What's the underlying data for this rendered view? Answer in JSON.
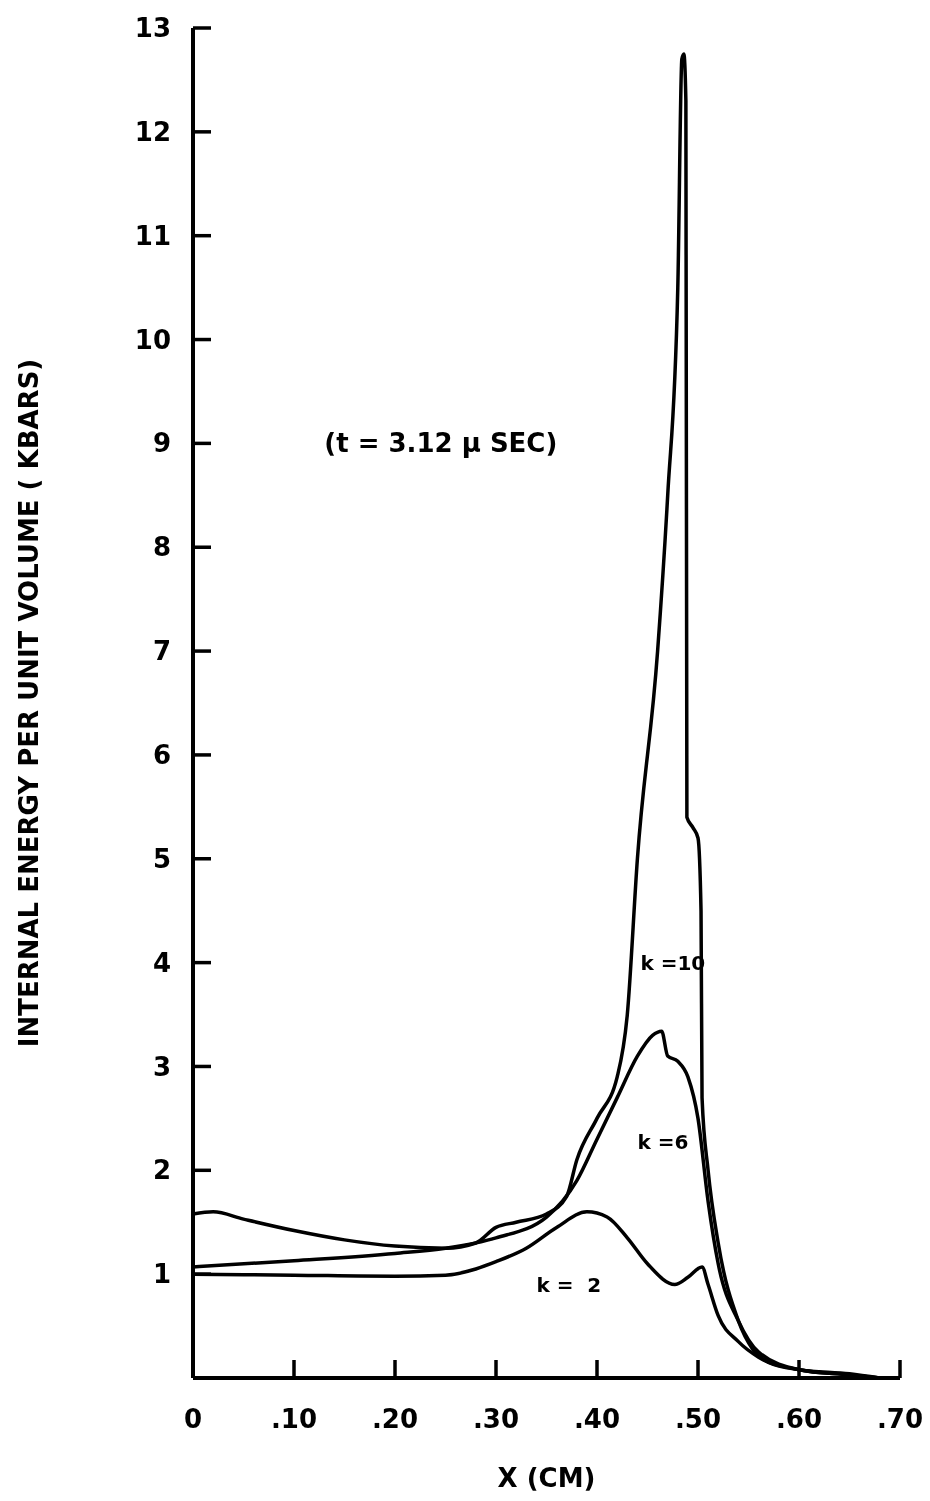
{
  "chart_data": {
    "type": "line",
    "xlabel": "X (CM)",
    "ylabel": "INTERNAL ENERGY PER UNIT VOLUME ( KBARS)",
    "xlim": [
      0,
      0.7
    ],
    "ylim": [
      0,
      13
    ],
    "xticks": [
      0,
      {
        "value": 0.1,
        "label": ".10"
      },
      {
        "value": 0.2,
        "label": ".20"
      },
      {
        "value": 0.3,
        "label": ".30"
      },
      {
        "value": 0.4,
        "label": ".40"
      },
      {
        "value": 0.5,
        "label": ".50"
      },
      {
        "value": 0.6,
        "label": ".60"
      },
      {
        "value": 0.7,
        "label": ".70"
      }
    ],
    "yticks": [
      1,
      2,
      3,
      4,
      5,
      6,
      7,
      8,
      9,
      10,
      11,
      12,
      13
    ],
    "marker": "none",
    "line_style": "solid",
    "series": [
      {
        "name": "k =10",
        "color": "#000000",
        "x": [
          0,
          0.02,
          0.05,
          0.1,
          0.15,
          0.2,
          0.25,
          0.28,
          0.3,
          0.32,
          0.35,
          0.37,
          0.38,
          0.4,
          0.42,
          0.43,
          0.44,
          0.46,
          0.47,
          0.48,
          0.484,
          0.486,
          0.488,
          0.489,
          0.495,
          0.5,
          0.503,
          0.504,
          0.51,
          0.52,
          0.54,
          0.554,
          0.57,
          0.6,
          0.65,
          0.68
        ],
        "values": [
          1.58,
          1.6,
          1.53,
          1.42,
          1.33,
          1.27,
          1.25,
          1.3,
          1.45,
          1.5,
          1.58,
          1.75,
          2.1,
          2.5,
          2.9,
          3.5,
          5,
          7,
          8.5,
          10.5,
          12.7,
          12.75,
          12.3,
          5.4,
          5.3,
          5.2,
          4.5,
          2.7,
          2.0,
          1.3,
          0.55,
          0.28,
          0.15,
          0.08,
          0.04,
          0
        ]
      },
      {
        "name": "k =6",
        "color": "#000000",
        "x": [
          0,
          0.1,
          0.2,
          0.25,
          0.3,
          0.35,
          0.38,
          0.4,
          0.42,
          0.44,
          0.455,
          0.464,
          0.47,
          0.48,
          0.49,
          0.5,
          0.51,
          0.52,
          0.54,
          0.56,
          0.6,
          0.65,
          0.68
        ],
        "values": [
          1.07,
          1.13,
          1.2,
          1.25,
          1.35,
          1.55,
          1.9,
          2.3,
          2.7,
          3.1,
          3.3,
          3.34,
          3.1,
          3.05,
          2.9,
          2.5,
          1.7,
          1.1,
          0.55,
          0.25,
          0.08,
          0.03,
          0
        ]
      },
      {
        "name": "k =  2",
        "color": "#000000",
        "x": [
          0,
          0.1,
          0.2,
          0.25,
          0.28,
          0.3,
          0.33,
          0.36,
          0.39,
          0.41,
          0.43,
          0.45,
          0.477,
          0.49,
          0.504,
          0.51,
          0.52,
          0.54,
          0.56,
          0.6,
          0.65,
          0.68
        ],
        "values": [
          1.0,
          0.99,
          0.98,
          0.99,
          1.05,
          1.12,
          1.25,
          1.45,
          1.6,
          1.55,
          1.35,
          1.1,
          0.9,
          0.97,
          1.07,
          0.9,
          0.6,
          0.35,
          0.2,
          0.08,
          0.03,
          0
        ]
      }
    ],
    "annotations": [
      "(t = 3.12 μ SEC)"
    ]
  }
}
